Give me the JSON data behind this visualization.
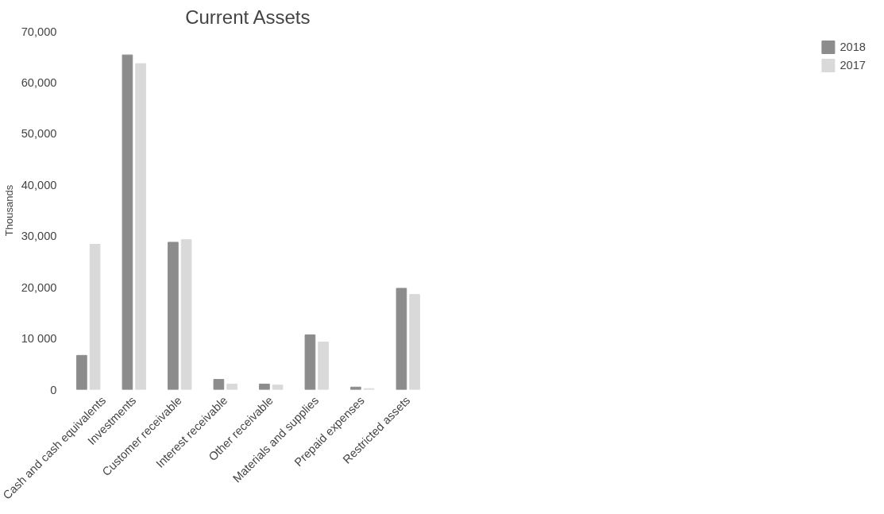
{
  "chart_data": {
    "type": "bar",
    "title": "Current Assets",
    "ylabel": "Thousands",
    "categories": [
      "Cash and cash equivalents",
      "Investments",
      "Customer receivable",
      "Interest receivable",
      "Other receivable",
      "Materials and supplies",
      "Prepaid expenses",
      "Restricted assets"
    ],
    "series": [
      {
        "name": "2018",
        "color": "#8c8c8c",
        "values": [
          6700,
          65400,
          28800,
          2000,
          1100,
          10700,
          500,
          19800
        ]
      },
      {
        "name": "2017",
        "color": "#d9d9d9",
        "values": [
          28400,
          63700,
          29300,
          1100,
          900,
          9300,
          200,
          18600
        ]
      }
    ],
    "ylim": [
      0,
      70000
    ],
    "yticks": [
      {
        "value": 0,
        "label": "0"
      },
      {
        "value": 10000,
        "label": "10 000"
      },
      {
        "value": 20000,
        "label": "20,000"
      },
      {
        "value": 30000,
        "label": "30,000"
      },
      {
        "value": 40000,
        "label": "40,000"
      },
      {
        "value": 50000,
        "label": "50,000"
      },
      {
        "value": 60000,
        "label": "60,000"
      },
      {
        "value": 70000,
        "label": "70,000"
      }
    ],
    "grid": false,
    "legend": "right"
  }
}
